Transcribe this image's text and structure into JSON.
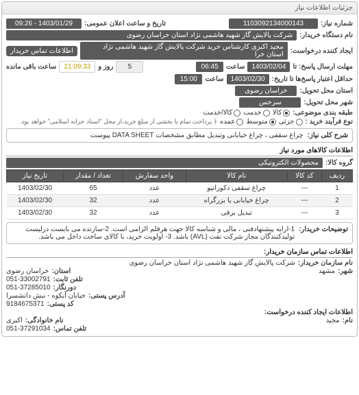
{
  "panel_title": "جزئیات اطلاعات نیاز",
  "need_no_label": "شماره نیاز:",
  "need_no": "1103092134000143",
  "announce_label": "تاریخ و ساعت اعلان عمومی:",
  "announce_value": "1403/01/29 - 09:26",
  "buyer_label": "نام دستگاه خریدار:",
  "buyer_value": "شرکت پالایش گاز شهید هاشمی نژاد   استان خراسان رضوی",
  "requester_label": "ایجاد کننده درخواست:",
  "requester_value": "مجید اکبری کارشناس خرید شرکت پالایش گاز شهید هاشمی نژاد   استان خرا",
  "contact_btn": "اطلاعات تماس خریدار",
  "deadline_submit_label": "مهلت ارسال پاسخ: تا",
  "deadline_submit_date": "1403/02/04",
  "time_label": "ساعت",
  "deadline_submit_time": "06:45",
  "day_label": "روز و",
  "day_value": "5",
  "remaining_time": "21:09:33",
  "remaining_label": "ساعت باقی مانده",
  "validity_label": "حداقل اعتبار پاسخ‌ها تا تاریخ:",
  "validity_date": "1403/02/30",
  "validity_time": "15:00",
  "province_label": "استان محل تحویل:",
  "province_value": "خراسان رضوی",
  "city_label": "شهر محل تحویل:",
  "city_value": "سرخس",
  "category_label": "طبقه بندی موضوعی:",
  "trans_label": "نوع فرآیند خرید :",
  "trans_text": "﴿ پرداخت تمام یا بخشی از مبلغ خرید،از محل \"اسناد خزانه اسلامی\" خواهد بود.",
  "radios": {
    "r1": {
      "label": "کالا",
      "opts": [
        "کالا",
        "خدمت",
        "کالا/خدمت"
      ],
      "checked": 0
    },
    "r2": {
      "label": "جزئی",
      "opts": [
        "جزئی",
        "متوسط",
        "عمده"
      ],
      "checked": 1
    }
  },
  "desc_label": "شرح کلی نیاز:",
  "desc_value": "چراغ سقفی ، چراغ خیابانی وتبدیل مطابق مشخصات DATA SHEET پیوست",
  "items_title": "اطلاعات کالاهای مورد نیاز",
  "group_label": "گروه کالا:",
  "group_value": "محصولات الکترونیکی",
  "table": {
    "headers": [
      "ردیف",
      "کد کالا",
      "نام کالا",
      "واحد سفارش",
      "تعداد / مقدار",
      "تاریخ نیاز"
    ],
    "rows": [
      [
        "1",
        "---",
        "چراغ سقفی دکوراتیو",
        "عدد",
        "65",
        "1403/02/30"
      ],
      [
        "2",
        "---",
        "چراغ خیابانی یا بزرگراه",
        "عدد",
        "32",
        "1403/02/30"
      ],
      [
        "3",
        "---",
        "تبدیل برقی",
        "عدد",
        "32",
        "1403/02/30"
      ]
    ]
  },
  "conditions_label": "توضیحات خریدار:",
  "conditions_text": "1-ارایه پیشنهادفنی ، مالی و شناسه کالا جهت هرقلم الزامی است. 2-سازنده می بایست درلیست تولیدکنندگان مجاز شرکت نفت (AVL) باشد. 3- اولویت خرید، با کالای ساخت داخل می باشد.",
  "contact_title": "اطلاعات تماس سازمان خریدار:",
  "contact": {
    "org_label": "نام سازمان خریدار:",
    "org": "شرکت پالایش گاز شهید هاشمی نژاد استان خراسان رضوی",
    "city_label": "شهر:",
    "city": "مشهد",
    "province_label": "استان:",
    "province": "خراسان رضوی",
    "phone1_label": "تلفن ثابت:",
    "phone1": "051-33002791",
    "fax_label": "دورنگار:",
    "fax": "051-37285010",
    "addr_label": "آدرس پستی:",
    "addr": "خیابان آبکوه - نبش دانشسرا",
    "postal_label": "کد پستی:",
    "postal": "9184675371",
    "creator_title": "اطلاعات ایجاد کننده درخواست:",
    "name_label": "نام:",
    "name": "مجید",
    "family_label": "نام خانوادگی:",
    "family": "اکبری",
    "phone2_label": "تلفن تماس:",
    "phone2": "051-37291034"
  }
}
